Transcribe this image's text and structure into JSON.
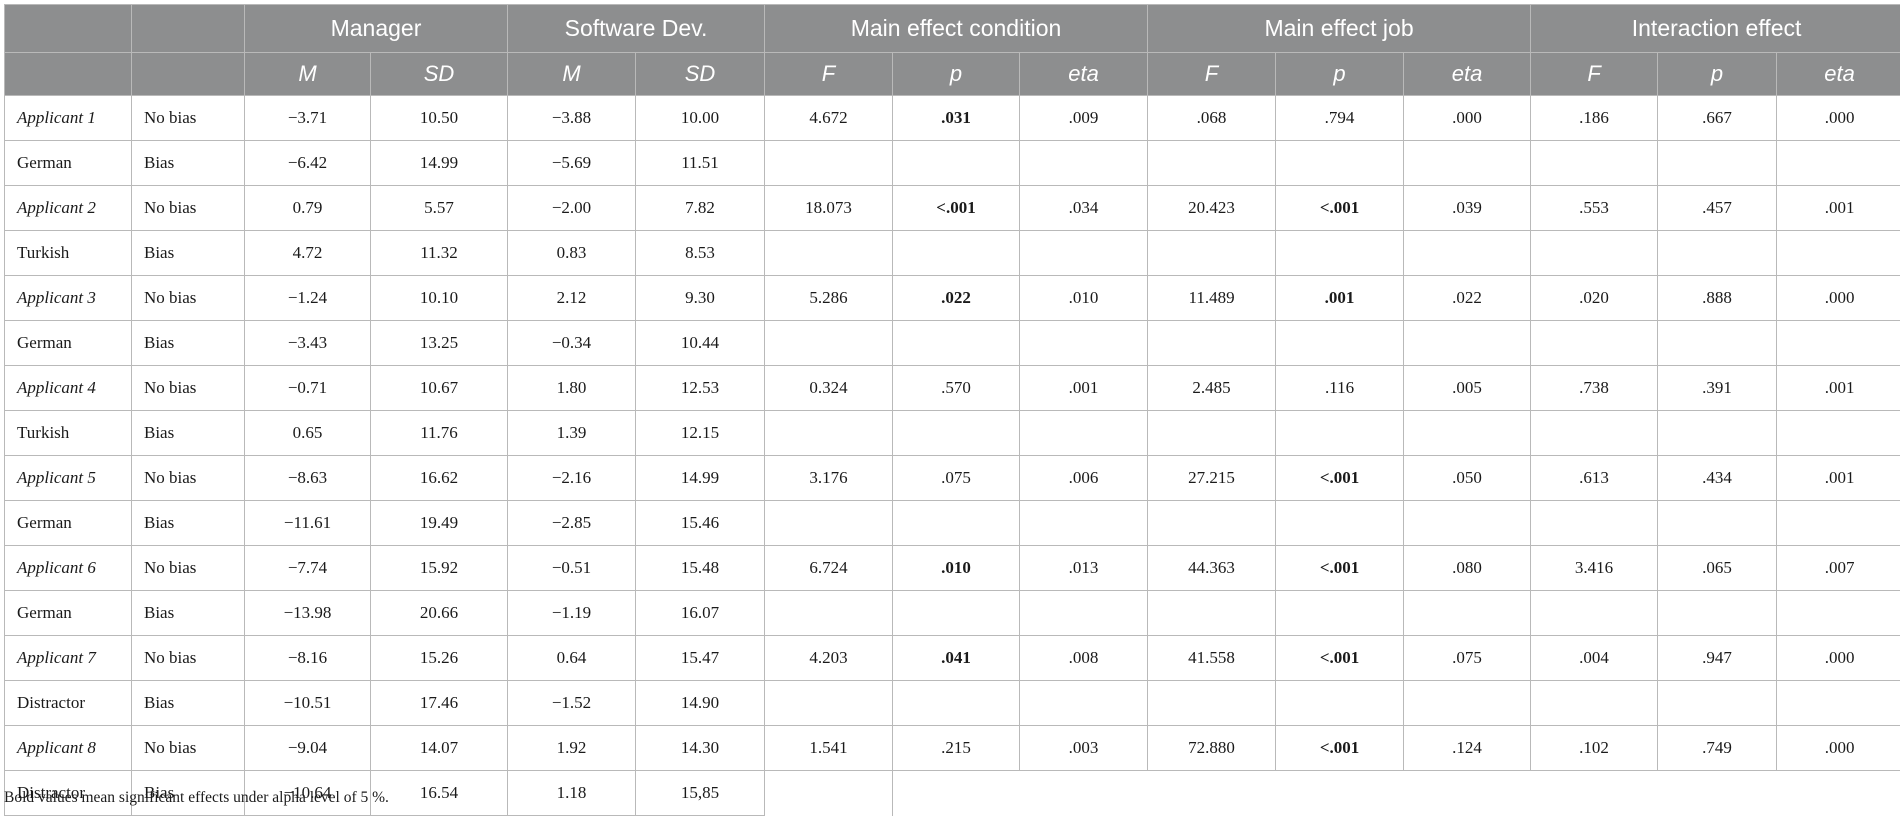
{
  "header": {
    "groups": [
      "Manager",
      "Software Dev.",
      "Main effect condition",
      "Main effect job",
      "Interaction effect"
    ],
    "sub": [
      "M",
      "SD",
      "M",
      "SD",
      "F",
      "p",
      "eta",
      "F",
      "p",
      "eta",
      "F",
      "p",
      "eta"
    ]
  },
  "rows": [
    [
      "Applicant 1",
      "No bias",
      "−3.71",
      "10.50",
      "−3.88",
      "10.00",
      "4.672",
      ".031",
      ".009",
      ".068",
      ".794",
      ".000",
      ".186",
      ".667",
      ".000"
    ],
    [
      "German",
      "Bias",
      "−6.42",
      "14.99",
      "−5.69",
      "11.51",
      "",
      "",
      "",
      "",
      "",
      "",
      "",
      "",
      ""
    ],
    [
      "Applicant 2",
      "No bias",
      "0.79",
      "5.57",
      "−2.00",
      "7.82",
      "18.073",
      "<.001",
      ".034",
      "20.423",
      "<.001",
      ".039",
      ".553",
      ".457",
      ".001"
    ],
    [
      "Turkish",
      "Bias",
      "4.72",
      "11.32",
      "0.83",
      "8.53",
      "",
      "",
      "",
      "",
      "",
      "",
      "",
      "",
      ""
    ],
    [
      "Applicant 3",
      "No bias",
      "−1.24",
      "10.10",
      "2.12",
      "9.30",
      "5.286",
      ".022",
      ".010",
      "11.489",
      ".001",
      ".022",
      ".020",
      ".888",
      ".000"
    ],
    [
      "German",
      "Bias",
      "−3.43",
      "13.25",
      "−0.34",
      "10.44",
      "",
      "",
      "",
      "",
      "",
      "",
      "",
      "",
      ""
    ],
    [
      "Applicant 4",
      "No bias",
      "−0.71",
      "10.67",
      "1.80",
      "12.53",
      "0.324",
      ".570",
      ".001",
      "2.485",
      ".116",
      ".005",
      ".738",
      ".391",
      ".001"
    ],
    [
      "Turkish",
      "Bias",
      "0.65",
      "11.76",
      "1.39",
      "12.15",
      "",
      "",
      "",
      "",
      "",
      "",
      "",
      "",
      ""
    ],
    [
      "Applicant 5",
      "No bias",
      "−8.63",
      "16.62",
      "−2.16",
      "14.99",
      "3.176",
      ".075",
      ".006",
      "27.215",
      "<.001",
      ".050",
      ".613",
      ".434",
      ".001"
    ],
    [
      "German",
      "Bias",
      "−11.61",
      "19.49",
      "−2.85",
      "15.46",
      "",
      "",
      "",
      "",
      "",
      "",
      "",
      "",
      ""
    ],
    [
      "Applicant 6",
      "No bias",
      "−7.74",
      "15.92",
      "−0.51",
      "15.48",
      "6.724",
      ".010",
      ".013",
      "44.363",
      "<.001",
      ".080",
      "3.416",
      ".065",
      ".007"
    ],
    [
      "German",
      "Bias",
      "−13.98",
      "20.66",
      "−1.19",
      "16.07",
      "",
      "",
      "",
      "",
      "",
      "",
      "",
      "",
      ""
    ],
    [
      "Applicant 7",
      "No bias",
      "−8.16",
      "15.26",
      "0.64",
      "15.47",
      "4.203",
      ".041",
      ".008",
      "41.558",
      "<.001",
      ".075",
      ".004",
      ".947",
      ".000"
    ],
    [
      "Distractor",
      "Bias",
      "−10.51",
      "17.46",
      "−1.52",
      "14.90",
      "",
      "",
      "",
      "",
      "",
      "",
      "",
      "",
      ""
    ],
    [
      "Applicant 8",
      "No bias",
      "−9.04",
      "14.07",
      "1.92",
      "14.30",
      "1.541",
      ".215",
      ".003",
      "72.880",
      "<.001",
      ".124",
      ".102",
      ".749",
      ".000"
    ],
    [
      "Distractor",
      "Bias",
      "−10.64",
      "16.54",
      "1.18",
      "15,85",
      "",
      "",
      "",
      "",
      "",
      "",
      "",
      "",
      ""
    ]
  ],
  "bold_cells": [
    [
      0,
      7
    ],
    [
      2,
      7
    ],
    [
      2,
      10
    ],
    [
      4,
      7
    ],
    [
      4,
      10
    ],
    [
      8,
      10
    ],
    [
      10,
      7
    ],
    [
      10,
      10
    ],
    [
      12,
      7
    ],
    [
      12,
      10
    ],
    [
      14,
      10
    ]
  ],
  "note": "Bold values mean significant effects under alpha level of 5 %."
}
